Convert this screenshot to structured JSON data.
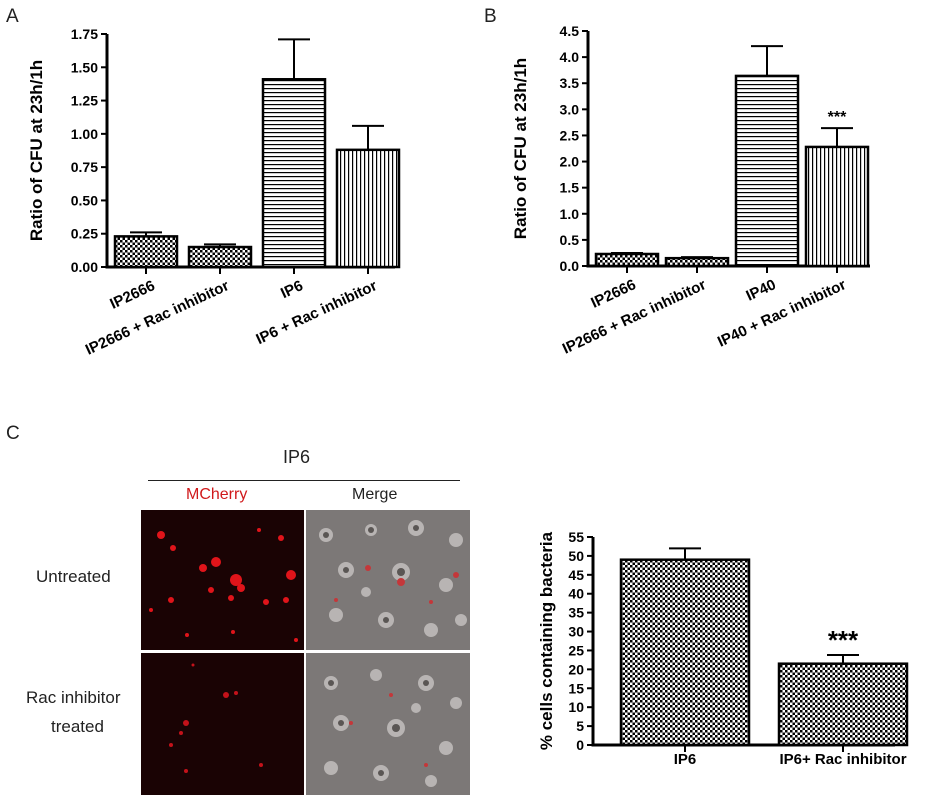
{
  "panel_labels": {
    "a": "A",
    "b": "B",
    "c": "C"
  },
  "chart_data": [
    {
      "id": "A",
      "type": "bar",
      "ylabel": "Ratio of CFU at 23h/1h",
      "xlabel": "",
      "ylim": [
        0,
        1.75
      ],
      "yticks": [
        "0.00",
        "0.25",
        "0.50",
        "0.75",
        "1.00",
        "1.25",
        "1.50",
        "1.75"
      ],
      "categories": [
        "IP2666",
        "IP2666 + Rac inhibitor",
        "IP6",
        "IP6 + Rac inhibitor"
      ],
      "values": [
        0.23,
        0.15,
        1.41,
        0.88
      ],
      "errors": [
        0.03,
        0.02,
        0.3,
        0.18
      ],
      "patterns": [
        "check",
        "check",
        "hlines",
        "vlines"
      ],
      "significance": [
        "",
        "",
        "",
        ""
      ]
    },
    {
      "id": "B",
      "type": "bar",
      "ylabel": "Ratio of CFU at 23h/1h",
      "xlabel": "",
      "ylim": [
        0,
        4.5
      ],
      "yticks": [
        "0.0",
        "0.5",
        "1.0",
        "1.5",
        "2.0",
        "2.5",
        "3.0",
        "3.5",
        "4.0",
        "4.5"
      ],
      "categories": [
        "IP2666",
        "IP2666 + Rac inhibitor",
        "IP40",
        "IP40 + Rac inhibitor"
      ],
      "values": [
        0.23,
        0.15,
        3.64,
        2.28
      ],
      "errors": [
        0.02,
        0.02,
        0.57,
        0.36
      ],
      "patterns": [
        "check",
        "check",
        "hlines",
        "vlines"
      ],
      "significance": [
        "",
        "",
        "",
        "***"
      ]
    },
    {
      "id": "C",
      "type": "bar",
      "ylabel": "% cells containing bacteria",
      "xlabel": "",
      "ylim": [
        0,
        55
      ],
      "yticks": [
        "0",
        "5",
        "10",
        "15",
        "20",
        "25",
        "30",
        "35",
        "40",
        "45",
        "50",
        "55"
      ],
      "categories": [
        "IP6",
        "IP6+ Rac inhibitor"
      ],
      "values": [
        49.0,
        21.5
      ],
      "errors": [
        3.0,
        2.3
      ],
      "patterns": [
        "check",
        "check"
      ],
      "significance": [
        "",
        "***"
      ]
    }
  ],
  "micrograph": {
    "strain": "IP6",
    "columns": [
      "MCherry",
      "Merge"
    ],
    "rows": [
      "Untreated",
      "Rac inhibitor treated"
    ],
    "row_lines": [
      [
        "Untreated"
      ],
      [
        "Rac inhibitor",
        "treated"
      ]
    ],
    "colors": {
      "mcherry_label": "#d0191b",
      "merge_label": "#222222"
    }
  }
}
